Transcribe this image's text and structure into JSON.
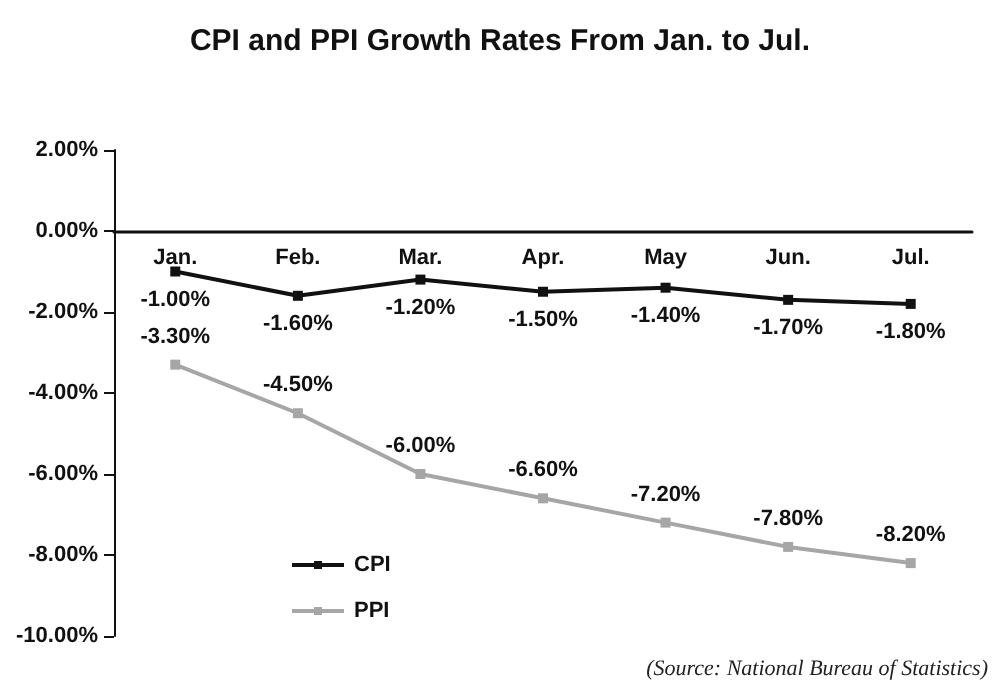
{
  "chart_data": {
    "type": "line",
    "title": "CPI and PPI Growth Rates From Jan. to Jul.",
    "categories": [
      "Jan.",
      "Feb.",
      "Mar.",
      "Apr.",
      "May",
      "Jun.",
      "Jul."
    ],
    "series": [
      {
        "name": "CPI",
        "color": "#111111",
        "values": [
          -1.0,
          -1.6,
          -1.2,
          -1.5,
          -1.4,
          -1.7,
          -1.8
        ],
        "value_labels": [
          "-1.00%",
          "-1.60%",
          "-1.20%",
          "-1.50%",
          "-1.40%",
          "-1.70%",
          "-1.80%"
        ]
      },
      {
        "name": "PPI",
        "color": "#a6a6a6",
        "values": [
          -3.3,
          -4.5,
          -6.0,
          -6.6,
          -7.2,
          -7.8,
          -8.2
        ],
        "value_labels": [
          "-3.30%",
          "-4.50%",
          "-6.00%",
          "-6.60%",
          "-7.20%",
          "-7.80%",
          "-8.20%"
        ]
      }
    ],
    "ylim": [
      -10,
      2
    ],
    "yticks": [
      {
        "value": 2,
        "label": "2.00%"
      },
      {
        "value": 0,
        "label": "0.00%"
      },
      {
        "value": -2,
        "label": "-2.00%"
      },
      {
        "value": -4,
        "label": "-4.00%"
      },
      {
        "value": -6,
        "label": "-6.00%"
      },
      {
        "value": -8,
        "label": "-8.00%"
      },
      {
        "value": -10,
        "label": "-10.00%"
      }
    ],
    "grid": false,
    "legend": "bottom left",
    "marker": "square",
    "line_style": "solid",
    "annotations": [
      "(Source: National Bureau of Statistics)"
    ]
  }
}
